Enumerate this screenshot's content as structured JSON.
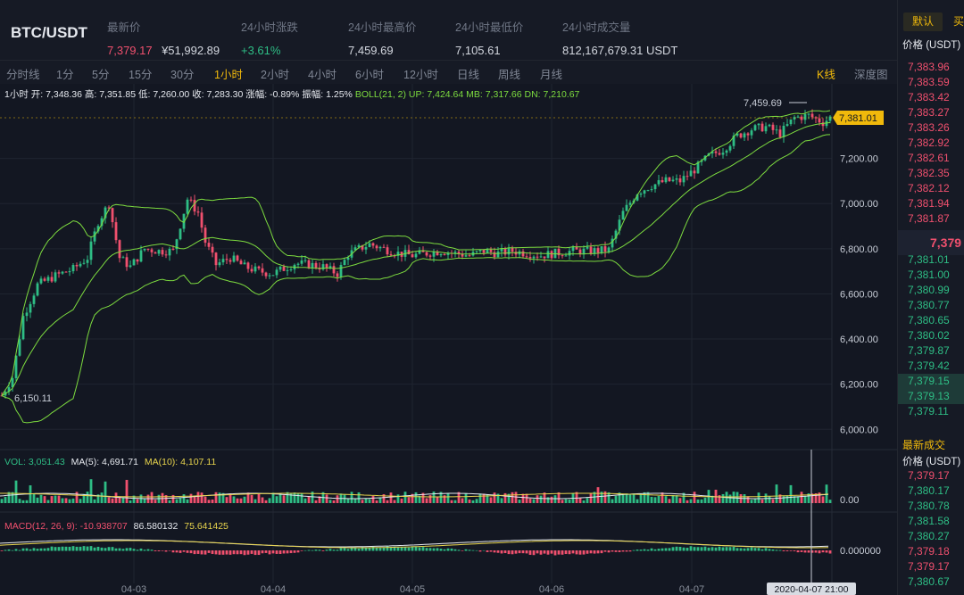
{
  "header": {
    "pair": "BTC/USDT",
    "stats": [
      {
        "label": "最新价",
        "value": "7,379.17",
        "value2": "¥51,992.89"
      },
      {
        "label": "24小时涨跌",
        "value": "+3.61%"
      },
      {
        "label": "24小时最高价",
        "value": "7,459.69"
      },
      {
        "label": "24小时最低价",
        "value": "7,105.61"
      },
      {
        "label": "24小时成交量",
        "value": "812,167,679.31 USDT"
      }
    ]
  },
  "tabs": {
    "items": [
      "分时线",
      "1分",
      "5分",
      "15分",
      "30分",
      "1小时",
      "2小时",
      "4小时",
      "6小时",
      "12小时",
      "日线",
      "周线",
      "月线"
    ],
    "active_index": 5,
    "kline": "K线",
    "depth": "深度图"
  },
  "chart": {
    "ohlc_prefix": "1小时 开: 7,348.36 高: 7,351.85 低: 7,260.00 收: 7,283.30 涨幅: -0.89% 振幅: 1.25%",
    "boll": "BOLL(21, 2) UP: 7,424.64 MB: 7,317.66 DN: 7,210.67",
    "high_marker": "7,459.69",
    "low_marker": "6,150.11",
    "current_price": "7,381.01",
    "y_ticks": [
      "7,200.00",
      "7,000.00",
      "6,800.00",
      "6,600.00",
      "6,400.00",
      "6,200.00",
      "6,000.00"
    ],
    "x_ticks": [
      "04-03",
      "04-04",
      "04-05",
      "04-06",
      "04-07"
    ],
    "crosshair_time": "2020-04-07 21:00",
    "volume": {
      "label": "VOL: 3,051.43",
      "ma5": "MA(5): 4,691.71",
      "ma10": "MA(10): 4,107.11",
      "tick": "0.00"
    },
    "macd": {
      "label": "MACD(12, 26, 9): -10.938707",
      "v1": "86.580132",
      "v2": "75.641425",
      "tick": "0.000000"
    }
  },
  "colors": {
    "up": "#2ebd85",
    "down": "#f0506e",
    "accent": "#f0b90b",
    "boll": "#7ddc3f"
  },
  "panel": {
    "default_btn": "默认",
    "buy_btn": "买",
    "price_header": "价格 (USDT)",
    "asks": [
      "7,383.96",
      "7,383.59",
      "7,383.42",
      "7,383.27",
      "7,383.26",
      "7,382.92",
      "7,382.61",
      "7,382.35",
      "7,382.12",
      "7,381.94",
      "7,381.87"
    ],
    "mid": "7,379",
    "bids": [
      "7,381.01",
      "7,381.00",
      "7,380.99",
      "7,380.77",
      "7,380.65",
      "7,380.02",
      "7,379.87",
      "7,379.42",
      "7,379.15",
      "7,379.13",
      "7,379.11"
    ],
    "trades_title": "最新成交",
    "trades_header": "价格 (USDT)",
    "trades": [
      {
        "p": "7,379.17",
        "side": "down"
      },
      {
        "p": "7,380.17",
        "side": "up"
      },
      {
        "p": "7,380.78",
        "side": "up"
      },
      {
        "p": "7,381.58",
        "side": "up"
      },
      {
        "p": "7,380.27",
        "side": "up"
      },
      {
        "p": "7,379.18",
        "side": "down"
      },
      {
        "p": "7,379.17",
        "side": "down"
      },
      {
        "p": "7,380.67",
        "side": "up"
      }
    ]
  }
}
